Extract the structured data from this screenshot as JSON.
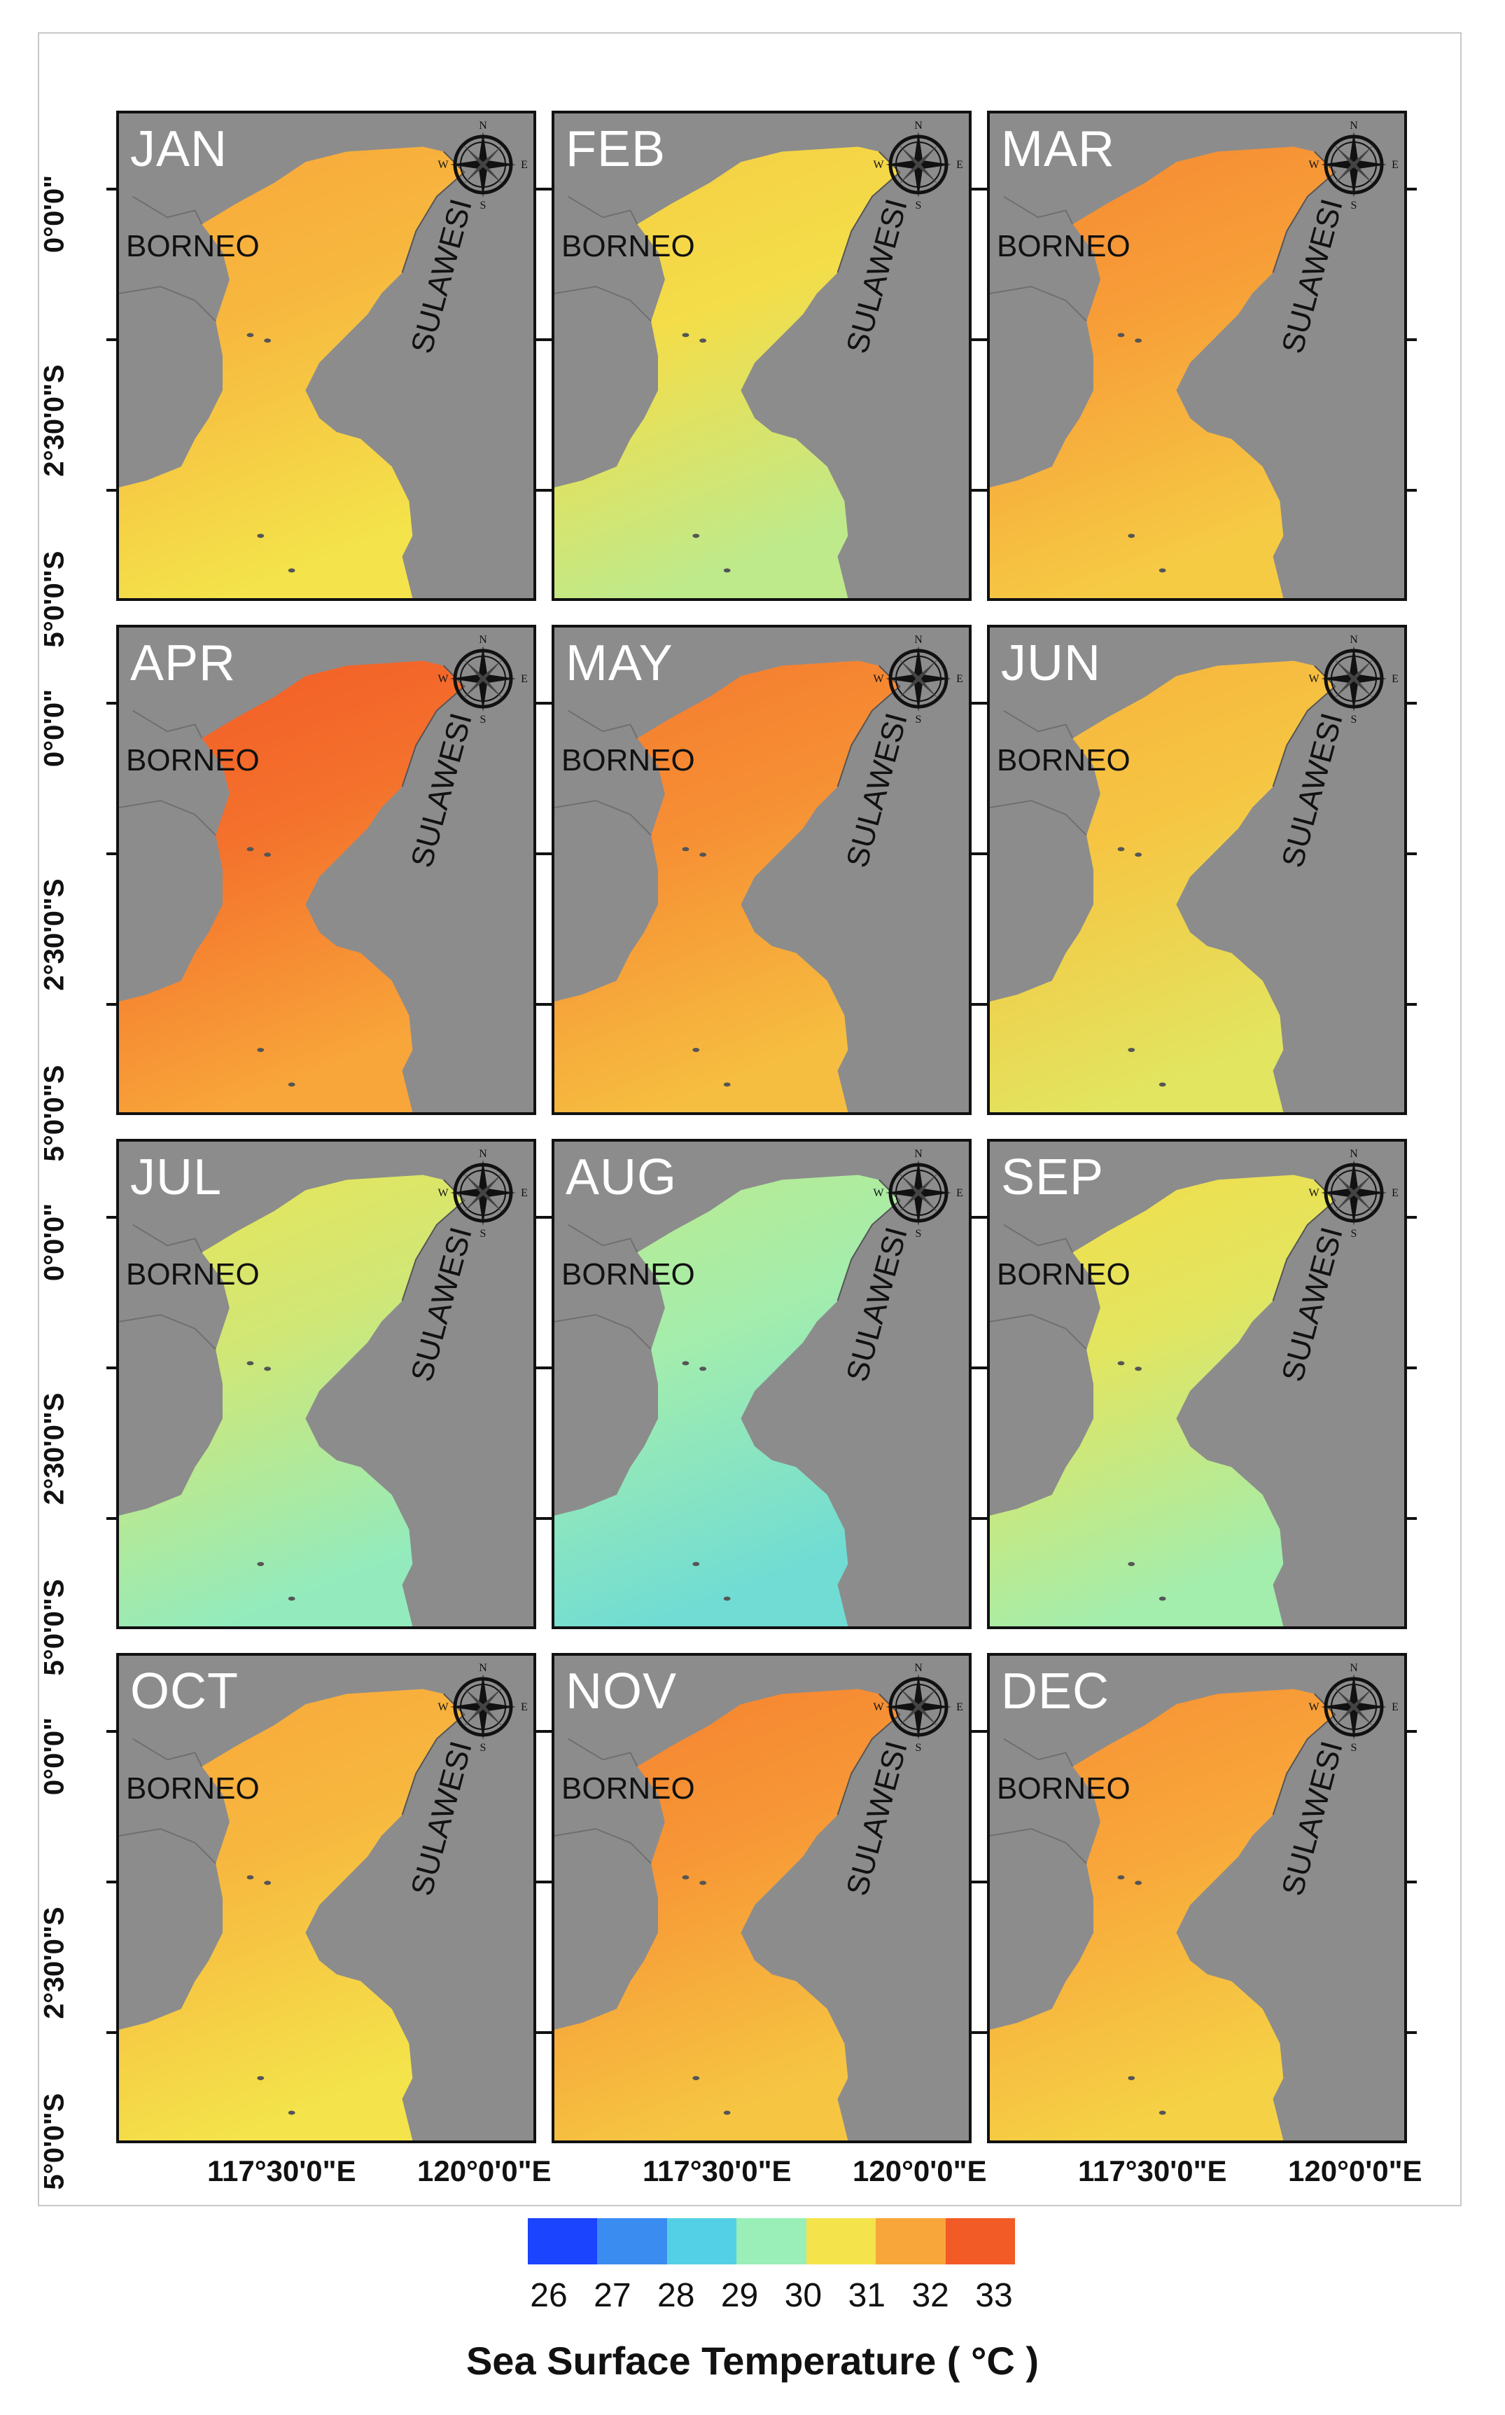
{
  "figure": {
    "panels": [
      {
        "month": "JAN",
        "temp_c": 30.6
      },
      {
        "month": "FEB",
        "temp_c": 30.0
      },
      {
        "month": "MAR",
        "temp_c": 31.0
      },
      {
        "month": "APR",
        "temp_c": 31.6
      },
      {
        "month": "MAY",
        "temp_c": 31.2
      },
      {
        "month": "JUN",
        "temp_c": 30.4
      },
      {
        "month": "JUL",
        "temp_c": 29.5
      },
      {
        "month": "AUG",
        "temp_c": 29.0
      },
      {
        "month": "SEP",
        "temp_c": 29.7
      },
      {
        "month": "OCT",
        "temp_c": 30.6
      },
      {
        "month": "NOV",
        "temp_c": 31.1
      },
      {
        "month": "DEC",
        "temp_c": 30.9
      }
    ],
    "labels": {
      "borneo": "BORNEO",
      "sulawesi": "SULAWESI"
    },
    "compass": {
      "n": "N",
      "s": "S",
      "e": "E",
      "w": "W"
    },
    "lat_labels": [
      "0°0'0\"",
      "2°30'0\"S",
      "5°0'0\"S"
    ],
    "lon_labels": [
      "117°30'0\"E",
      "120°0'0\"E"
    ]
  },
  "legend": {
    "title": "Sea Surface Temperature ( °C )",
    "ticks": [
      "26",
      "27",
      "28",
      "29",
      "30",
      "31",
      "32",
      "33"
    ],
    "colors": [
      "#1b44ff",
      "#3a8cf0",
      "#54d0e6",
      "#9aeeb8",
      "#f4e34a",
      "#f8a63a",
      "#f25a26"
    ]
  },
  "colors": {
    "land": "#8c8c8c",
    "border": "#111111"
  }
}
